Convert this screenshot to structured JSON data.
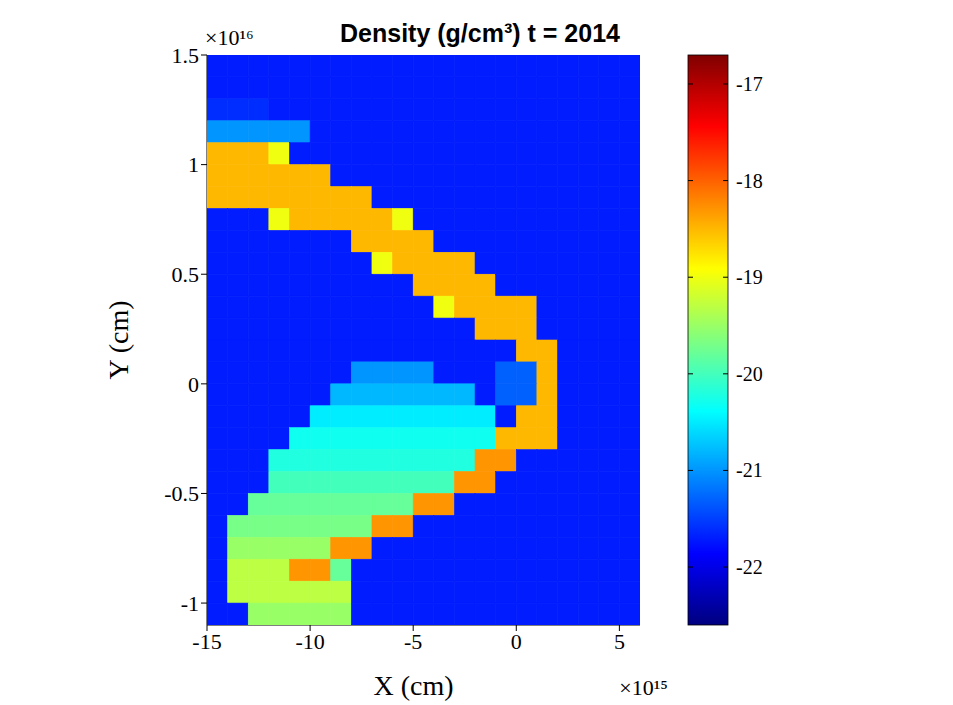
{
  "chart_data": {
    "type": "heatmap",
    "title": "Density (g/cm³) t = 2014",
    "x_label": "X (cm)",
    "y_label": "Y (cm)",
    "x_multiplier": "×10¹⁵",
    "y_multiplier": "×10¹⁶",
    "xlim": [
      -15,
      6
    ],
    "xticks": [
      -15,
      -10,
      -5,
      0,
      5
    ],
    "ylim": [
      -1.1,
      1.5
    ],
    "yticks": [
      -1,
      -0.5,
      0,
      0.5,
      1,
      1.5
    ],
    "color": "jet",
    "clim": [
      -22.6,
      -16.7
    ],
    "cticks": [
      -22,
      -21,
      -20,
      -19,
      -18,
      -17
    ],
    "x": [
      -14.5,
      -13.5,
      -12.5,
      -11.5,
      -10.5,
      -9.5,
      -8.5,
      -7.5,
      -6.5,
      -5.5,
      -4.5,
      -3.5,
      -2.5,
      -1.5,
      -0.5,
      0.5,
      1.5,
      2.5,
      3.5,
      4.5,
      5.5
    ],
    "y": [
      1.45,
      1.35,
      1.25,
      1.15,
      1.05,
      0.95,
      0.85,
      0.75,
      0.65,
      0.55,
      0.45,
      0.35,
      0.25,
      0.15,
      0.05,
      -0.05,
      -0.15,
      -0.25,
      -0.35,
      -0.45,
      -0.55,
      -0.65,
      -0.75,
      -0.85,
      -0.95,
      -1.05
    ],
    "z": [
      [
        -21.7,
        -21.7,
        -21.7,
        -21.7,
        -21.7,
        -21.7,
        -21.7,
        -21.7,
        -21.7,
        -21.7,
        -21.7,
        -21.7,
        -21.7,
        -21.7,
        -21.7,
        -21.7,
        -21.7,
        -21.7,
        -21.7,
        -21.7,
        -21.7
      ],
      [
        -21.7,
        -21.7,
        -21.7,
        -21.7,
        -21.7,
        -21.7,
        -21.7,
        -21.7,
        -21.7,
        -21.7,
        -21.7,
        -21.7,
        -21.7,
        -21.7,
        -21.7,
        -21.7,
        -21.7,
        -21.7,
        -21.7,
        -21.7,
        -21.7
      ],
      [
        -21.6,
        -21.6,
        -21.6,
        -21.7,
        -21.7,
        -21.7,
        -21.7,
        -21.7,
        -21.7,
        -21.7,
        -21.7,
        -21.7,
        -21.7,
        -21.7,
        -21.7,
        -21.7,
        -21.7,
        -21.7,
        -21.7,
        -21.7,
        -21.7
      ],
      [
        -21,
        -21,
        -21,
        -21,
        -21,
        -21.7,
        -21.7,
        -21.7,
        -21.7,
        -21.7,
        -21.7,
        -21.7,
        -21.7,
        -21.7,
        -21.7,
        -21.7,
        -21.7,
        -21.7,
        -21.7,
        -21.7,
        -21.7
      ],
      [
        -18.5,
        -18.5,
        -18.5,
        -19,
        -21.7,
        -21.7,
        -21.7,
        -21.7,
        -21.7,
        -21.7,
        -21.7,
        -21.7,
        -21.7,
        -21.7,
        -21.7,
        -21.7,
        -21.7,
        -21.7,
        -21.7,
        -21.7,
        -21.7
      ],
      [
        -18.5,
        -18.5,
        -18.5,
        -18.5,
        -18.5,
        -18.5,
        -21.7,
        -21.7,
        -21.7,
        -21.7,
        -21.7,
        -21.7,
        -21.7,
        -21.7,
        -21.7,
        -21.7,
        -21.7,
        -21.7,
        -21.7,
        -21.7,
        -21.7
      ],
      [
        -18.5,
        -18.5,
        -18.5,
        -18.5,
        -18.5,
        -18.5,
        -18.5,
        -18.5,
        -21.7,
        -21.7,
        -21.7,
        -21.7,
        -21.7,
        -21.7,
        -21.7,
        -21.7,
        -21.7,
        -21.7,
        -21.7,
        -21.7,
        -21.7
      ],
      [
        -21.7,
        -21.7,
        -21.7,
        -19,
        -18.5,
        -18.5,
        -18.5,
        -18.5,
        -18.5,
        -19,
        -21.7,
        -21.7,
        -21.7,
        -21.7,
        -21.7,
        -21.7,
        -21.7,
        -21.7,
        -21.7,
        -21.7,
        -21.7
      ],
      [
        -21.7,
        -21.7,
        -21.7,
        -21.7,
        -21.7,
        -21.7,
        -21.7,
        -18.5,
        -18.5,
        -18.5,
        -18.5,
        -21.7,
        -21.7,
        -21.7,
        -21.7,
        -21.7,
        -21.7,
        -21.7,
        -21.7,
        -21.7,
        -21.7
      ],
      [
        -21.7,
        -21.7,
        -21.7,
        -21.7,
        -21.7,
        -21.7,
        -21.7,
        -21.7,
        -19,
        -18.5,
        -18.5,
        -18.5,
        -18.5,
        -21.7,
        -21.7,
        -21.7,
        -21.7,
        -21.7,
        -21.7,
        -21.7,
        -21.7
      ],
      [
        -21.7,
        -21.7,
        -21.7,
        -21.7,
        -21.7,
        -21.7,
        -21.7,
        -21.7,
        -21.7,
        -21.7,
        -18.5,
        -18.5,
        -18.5,
        -18.5,
        -21.7,
        -21.7,
        -21.7,
        -21.7,
        -21.7,
        -21.7,
        -21.7
      ],
      [
        -21.7,
        -21.7,
        -21.7,
        -21.7,
        -21.7,
        -21.7,
        -21.7,
        -21.7,
        -21.7,
        -21.7,
        -21.7,
        -19,
        -18.5,
        -18.5,
        -18.5,
        -18.5,
        -21.7,
        -21.7,
        -21.7,
        -21.7,
        -21.7
      ],
      [
        -21.7,
        -21.7,
        -21.7,
        -21.7,
        -21.7,
        -21.7,
        -21.7,
        -21.7,
        -21.7,
        -21.7,
        -21.7,
        -21.7,
        -21.7,
        -18.5,
        -18.5,
        -18.5,
        -21.7,
        -21.7,
        -21.7,
        -21.7,
        -21.7
      ],
      [
        -21.7,
        -21.7,
        -21.7,
        -21.7,
        -21.7,
        -21.7,
        -21.7,
        -21.7,
        -21.7,
        -21.7,
        -21.7,
        -21.7,
        -21.7,
        -21.7,
        -21.7,
        -18.5,
        -18.5,
        -21.7,
        -21.7,
        -21.7,
        -21.7
      ],
      [
        -21.7,
        -21.7,
        -21.7,
        -21.7,
        -21.7,
        -21.7,
        -21.7,
        -21,
        -21,
        -21,
        -21,
        -21.7,
        -21.7,
        -21.7,
        -21.3,
        -21.3,
        -18.5,
        -21.7,
        -21.7,
        -21.7,
        -21.7
      ],
      [
        -21.7,
        -21.7,
        -21.7,
        -21.7,
        -21.7,
        -21.7,
        -20.8,
        -20.8,
        -20.8,
        -20.8,
        -20.8,
        -20.8,
        -20.8,
        -21.7,
        -21.3,
        -21.3,
        -18.5,
        -21.7,
        -21.7,
        -21.7,
        -21.7
      ],
      [
        -21.7,
        -21.7,
        -21.7,
        -21.7,
        -21.7,
        -20.5,
        -20.5,
        -20.5,
        -20.5,
        -20.5,
        -20.5,
        -20.5,
        -20.5,
        -20.5,
        -21.7,
        -18.5,
        -18.5,
        -21.7,
        -21.7,
        -21.7,
        -21.7
      ],
      [
        -21.7,
        -21.7,
        -21.7,
        -21.7,
        -20.3,
        -20.3,
        -20.3,
        -20.3,
        -20.3,
        -20.3,
        -20.3,
        -20.3,
        -20.3,
        -20.3,
        -18.5,
        -18.5,
        -18.5,
        -21.7,
        -21.7,
        -21.7,
        -21.7
      ],
      [
        -21.7,
        -21.7,
        -21.7,
        -20.2,
        -20.2,
        -20.2,
        -20.2,
        -20.2,
        -20.2,
        -20.2,
        -20.2,
        -20.2,
        -20.2,
        -18.3,
        -18.3,
        -21.7,
        -21.7,
        -21.7,
        -21.7,
        -21.7,
        -21.7
      ],
      [
        -21.7,
        -21.7,
        -21.7,
        -20,
        -20,
        -20,
        -20,
        -20,
        -20,
        -20,
        -20,
        -20,
        -18.3,
        -18.3,
        -21.7,
        -21.7,
        -21.7,
        -21.7,
        -21.7,
        -21.7,
        -21.7
      ],
      [
        -21.7,
        -21.7,
        -19.8,
        -19.8,
        -19.8,
        -19.8,
        -19.8,
        -19.8,
        -19.8,
        -19.8,
        -18.3,
        -18.3,
        -21.7,
        -21.7,
        -21.7,
        -21.7,
        -21.7,
        -21.7,
        -21.7,
        -21.7,
        -21.7
      ],
      [
        -21.7,
        -19.7,
        -19.7,
        -19.7,
        -19.7,
        -19.7,
        -19.7,
        -19.7,
        -18.3,
        -18.3,
        -21.7,
        -21.7,
        -21.7,
        -21.7,
        -21.7,
        -21.7,
        -21.7,
        -21.7,
        -21.7,
        -21.7,
        -21.7
      ],
      [
        -21.7,
        -19.5,
        -19.5,
        -19.5,
        -19.5,
        -19.5,
        -18.3,
        -18.3,
        -21.7,
        -21.7,
        -21.7,
        -21.7,
        -21.7,
        -21.7,
        -21.7,
        -21.7,
        -21.7,
        -21.7,
        -21.7,
        -21.7,
        -21.7
      ],
      [
        -21.7,
        -19.3,
        -19.3,
        -19.3,
        -18.3,
        -18.3,
        -19.8,
        -21.7,
        -21.7,
        -21.7,
        -21.7,
        -21.7,
        -21.7,
        -21.7,
        -21.7,
        -21.7,
        -21.7,
        -21.7,
        -21.7,
        -21.7,
        -21.7
      ],
      [
        -21.7,
        -19.3,
        -19.3,
        -19.3,
        -19.3,
        -19.3,
        -19.3,
        -21.7,
        -21.7,
        -21.7,
        -21.7,
        -21.7,
        -21.7,
        -21.7,
        -21.7,
        -21.7,
        -21.7,
        -21.7,
        -21.7,
        -21.7,
        -21.7
      ],
      [
        -21.7,
        -21.7,
        -19.5,
        -19.5,
        -19.5,
        -19.5,
        -19.5,
        -21.7,
        -21.7,
        -21.7,
        -21.7,
        -21.7,
        -21.7,
        -21.7,
        -21.7,
        -21.7,
        -21.7,
        -21.7,
        -21.7,
        -21.7,
        -21.7
      ]
    ]
  }
}
